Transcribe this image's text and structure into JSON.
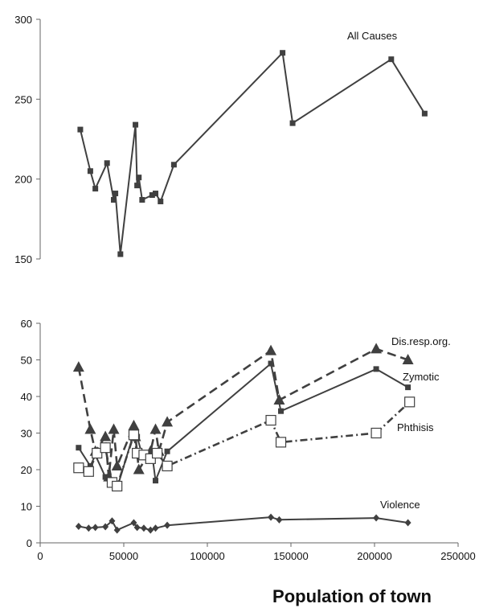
{
  "chart_data": [
    {
      "type": "line",
      "xlabel": "",
      "ylabel": "",
      "ylim": [
        150,
        300
      ],
      "yticks": [
        150,
        200,
        250,
        300
      ],
      "grid": false,
      "series": [
        {
          "name": "All Causes",
          "color": "#404040",
          "marker": "square-filled",
          "dash": "solid",
          "points": [
            [
              24000,
              231
            ],
            [
              30000,
              205
            ],
            [
              33000,
              194
            ],
            [
              40000,
              210
            ],
            [
              44000,
              187
            ],
            [
              45000,
              191
            ],
            [
              48000,
              153
            ],
            [
              57000,
              234
            ],
            [
              58000,
              196
            ],
            [
              59000,
              201
            ],
            [
              61000,
              187
            ],
            [
              67000,
              190
            ],
            [
              69000,
              191
            ],
            [
              72000,
              186
            ],
            [
              80000,
              209
            ],
            [
              145000,
              279
            ],
            [
              151000,
              235
            ],
            [
              210000,
              275
            ],
            [
              230000,
              241
            ]
          ]
        }
      ]
    },
    {
      "type": "line",
      "xlabel": "Population of town",
      "ylabel": "",
      "xlim": [
        0,
        250000
      ],
      "xticks": [
        0,
        50000,
        100000,
        150000,
        200000,
        250000
      ],
      "ylim": [
        0,
        60
      ],
      "yticks": [
        0,
        10,
        20,
        30,
        40,
        50,
        60
      ],
      "grid": false,
      "series": [
        {
          "name": "Dis.resp.org.",
          "color": "#404040",
          "marker": "triangle-filled",
          "dash": "dashed",
          "points": [
            [
              23000,
              48
            ],
            [
              30000,
              31
            ],
            [
              33000,
              25
            ],
            [
              39000,
              29
            ],
            [
              41000,
              18
            ],
            [
              44000,
              31
            ],
            [
              46000,
              21
            ],
            [
              56000,
              32
            ],
            [
              57000,
              29
            ],
            [
              59000,
              20
            ],
            [
              66000,
              25
            ],
            [
              69000,
              31
            ],
            [
              71000,
              25
            ],
            [
              76000,
              33
            ],
            [
              138000,
              52.5
            ],
            [
              143000,
              39
            ],
            [
              201000,
              53
            ],
            [
              220000,
              50
            ]
          ]
        },
        {
          "name": "Zymotic",
          "color": "#404040",
          "marker": "square-filled",
          "dash": "solid",
          "points": [
            [
              23000,
              26
            ],
            [
              30000,
              21
            ],
            [
              33000,
              24
            ],
            [
              39000,
              18
            ],
            [
              41000,
              18
            ],
            [
              44000,
              16
            ],
            [
              46000,
              15
            ],
            [
              56000,
              30
            ],
            [
              58000,
              29
            ],
            [
              61000,
              24
            ],
            [
              67000,
              24
            ],
            [
              69000,
              17
            ],
            [
              76000,
              25
            ],
            [
              138000,
              49
            ],
            [
              144000,
              36
            ],
            [
              201000,
              47.5
            ],
            [
              220000,
              42.5
            ]
          ]
        },
        {
          "name": "Phthisis",
          "color": "#404040",
          "marker": "square-open",
          "dash": "dashdot",
          "points": [
            [
              23000,
              20.5
            ],
            [
              29000,
              19.5
            ],
            [
              34000,
              24.5
            ],
            [
              39000,
              26
            ],
            [
              43000,
              16.5
            ],
            [
              46000,
              15.5
            ],
            [
              56000,
              29.5
            ],
            [
              58000,
              24.5
            ],
            [
              62000,
              24
            ],
            [
              66000,
              23
            ],
            [
              70000,
              24.5
            ],
            [
              76000,
              21
            ],
            [
              138000,
              33.5
            ],
            [
              144000,
              27.5
            ],
            [
              201000,
              30
            ],
            [
              221000,
              38.5
            ]
          ]
        },
        {
          "name": "Violence",
          "color": "#404040",
          "marker": "diamond-filled",
          "dash": "solid",
          "points": [
            [
              23000,
              4.5
            ],
            [
              29000,
              4.0
            ],
            [
              33000,
              4.2
            ],
            [
              39000,
              4.4
            ],
            [
              43000,
              6.0
            ],
            [
              46000,
              3.5
            ],
            [
              56000,
              5.5
            ],
            [
              58000,
              4.2
            ],
            [
              62000,
              4.0
            ],
            [
              66000,
              3.5
            ],
            [
              69000,
              4.0
            ],
            [
              76000,
              4.8
            ],
            [
              138000,
              7.0
            ],
            [
              143000,
              6.3
            ],
            [
              201000,
              6.8
            ],
            [
              220000,
              5.5
            ]
          ]
        }
      ]
    }
  ]
}
